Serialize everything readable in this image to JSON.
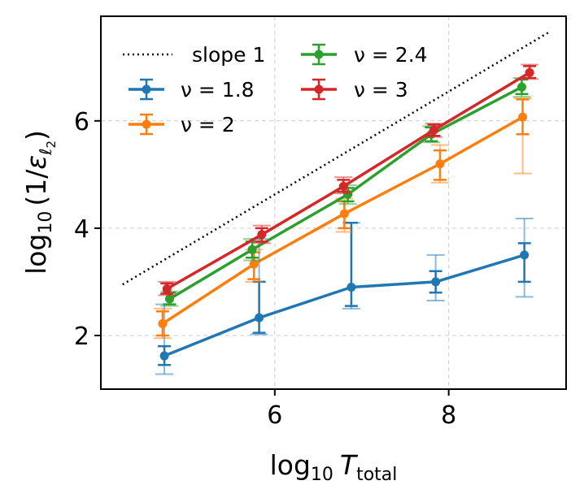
{
  "chart_data": {
    "type": "line",
    "title": "",
    "xlabel": {
      "main": "log",
      "sub": "10",
      "var": "T",
      "varsub": "total"
    },
    "ylabel": {
      "main": "log",
      "sub": "10",
      "open": "(1/",
      "var": "ε",
      "varsub": "ℓ",
      "varsubsub": "2",
      "close": ")"
    },
    "xlim": [
      4.0,
      9.35
    ],
    "ylim": [
      1.0,
      7.95
    ],
    "xticks": [
      6,
      8
    ],
    "yticks": [
      2,
      4,
      6
    ],
    "grid": true,
    "legend_position": "top-left",
    "reference_line": {
      "label": "slope 1",
      "x": [
        4.25,
        9.15
      ],
      "y": [
        2.95,
        7.65
      ],
      "color": "#000000",
      "style": "dotted"
    },
    "series": [
      {
        "name": "ν = 1.8",
        "color": "#1f77b4",
        "x": [
          4.73,
          5.82,
          6.88,
          7.85,
          8.87
        ],
        "y": [
          1.62,
          2.33,
          2.9,
          3.0,
          3.5
        ],
        "err_inner": [
          [
            1.45,
            1.8
          ],
          [
            2.05,
            3.0
          ],
          [
            2.55,
            4.1
          ],
          [
            2.8,
            3.2
          ],
          [
            3.0,
            3.72
          ]
        ],
        "err_outer": [
          [
            1.28,
            2.58
          ],
          [
            2.02,
            3.8
          ],
          [
            2.5,
            4.1
          ],
          [
            2.65,
            3.5
          ],
          [
            2.72,
            4.18
          ]
        ]
      },
      {
        "name": "ν = 2",
        "color": "#ff7f0e",
        "x": [
          4.71,
          5.76,
          6.8,
          7.9,
          8.85
        ],
        "y": [
          2.22,
          3.33,
          4.27,
          5.2,
          6.07
        ],
        "err_inner": [
          [
            2.0,
            2.45
          ],
          [
            3.05,
            3.55
          ],
          [
            4.0,
            4.5
          ],
          [
            4.9,
            5.45
          ],
          [
            5.75,
            6.4
          ]
        ],
        "err_outer": [
          [
            1.95,
            2.5
          ],
          [
            3.0,
            3.6
          ],
          [
            3.93,
            4.55
          ],
          [
            4.85,
            5.55
          ],
          [
            5.02,
            6.42
          ]
        ]
      },
      {
        "name": "ν = 2.4",
        "color": "#2ca02c",
        "x": [
          4.79,
          5.74,
          6.84,
          7.8,
          8.84
        ],
        "y": [
          2.68,
          3.6,
          4.63,
          5.75,
          6.63
        ],
        "err_inner": [
          [
            2.58,
            2.8
          ],
          [
            3.45,
            3.75
          ],
          [
            4.5,
            4.75
          ],
          [
            5.62,
            5.88
          ],
          [
            6.5,
            6.77
          ]
        ],
        "err_outer": [
          [
            2.55,
            2.82
          ],
          [
            3.4,
            3.8
          ],
          [
            4.45,
            4.8
          ],
          [
            5.6,
            5.9
          ],
          [
            6.45,
            6.8
          ]
        ]
      },
      {
        "name": "ν = 3",
        "color": "#d62728",
        "x": [
          4.76,
          5.85,
          6.79,
          7.83,
          8.93
        ],
        "y": [
          2.87,
          3.88,
          4.78,
          5.83,
          6.9
        ],
        "err_inner": [
          [
            2.78,
            2.97
          ],
          [
            3.75,
            4.0
          ],
          [
            4.68,
            4.9
          ],
          [
            5.72,
            5.93
          ],
          [
            6.8,
            7.02
          ]
        ],
        "err_outer": [
          [
            2.75,
            3.0
          ],
          [
            3.72,
            4.05
          ],
          [
            4.65,
            4.95
          ],
          [
            5.7,
            5.95
          ],
          [
            6.78,
            7.05
          ]
        ]
      }
    ]
  }
}
